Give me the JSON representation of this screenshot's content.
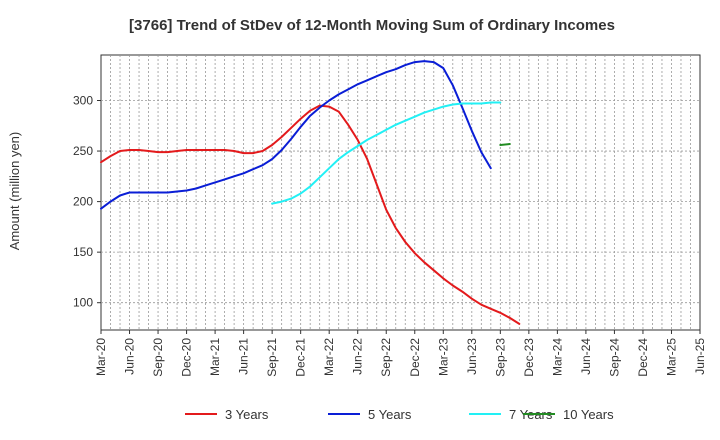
{
  "chart_data": {
    "type": "line",
    "title": "[3766]  Trend of StDev of 12-Month Moving Sum of Ordinary Incomes",
    "ylabel": "Amount (million yen)",
    "xlabel": "",
    "ylim": [
      73,
      345
    ],
    "yticks": [
      100,
      150,
      200,
      250,
      300
    ],
    "grid": true,
    "legend_position": "bottom",
    "x_tick_labels": [
      "Mar-20",
      "Jun-20",
      "Sep-20",
      "Dec-20",
      "Mar-21",
      "Jun-21",
      "Sep-21",
      "Dec-21",
      "Mar-22",
      "Jun-22",
      "Sep-22",
      "Dec-22",
      "Mar-23",
      "Jun-23",
      "Sep-23",
      "Dec-23",
      "Mar-24",
      "Jun-24",
      "Sep-24",
      "Dec-24",
      "Mar-25",
      "Jun-25"
    ],
    "series": [
      {
        "name": "3 Years",
        "color": "#e31a1c",
        "start_index": 0,
        "values": [
          239,
          245,
          250,
          251,
          251,
          250,
          249,
          249,
          250,
          251,
          251,
          251,
          251,
          251,
          250,
          248,
          248,
          250,
          256,
          264,
          273,
          282,
          290,
          295,
          294,
          289,
          276,
          261,
          242,
          217,
          192,
          174,
          160,
          149,
          140,
          132,
          124,
          117,
          111,
          104,
          98,
          94,
          90,
          85,
          79
        ]
      },
      {
        "name": "5 Years",
        "color": "#0a1ed6",
        "start_index": 0,
        "values": [
          193,
          200,
          206,
          209,
          209,
          209,
          209,
          209,
          210,
          211,
          213,
          216,
          219,
          222,
          225,
          228,
          232,
          236,
          242,
          251,
          262,
          274,
          285,
          293,
          300,
          306,
          311,
          316,
          320,
          324,
          328,
          331,
          335,
          338,
          339,
          338,
          332,
          315,
          293,
          270,
          249,
          233
        ]
      },
      {
        "name": "7 Years",
        "color": "#22f0f5",
        "start_index": 18,
        "values": [
          198,
          200,
          203,
          208,
          215,
          224,
          233,
          242,
          249,
          255,
          261,
          266,
          271,
          276,
          280,
          284,
          288,
          291,
          294,
          296,
          297,
          297,
          297,
          298,
          298
        ]
      },
      {
        "name": "10 Years",
        "color": "#228b22",
        "start_index": 42,
        "values": [
          256,
          257
        ]
      }
    ]
  }
}
